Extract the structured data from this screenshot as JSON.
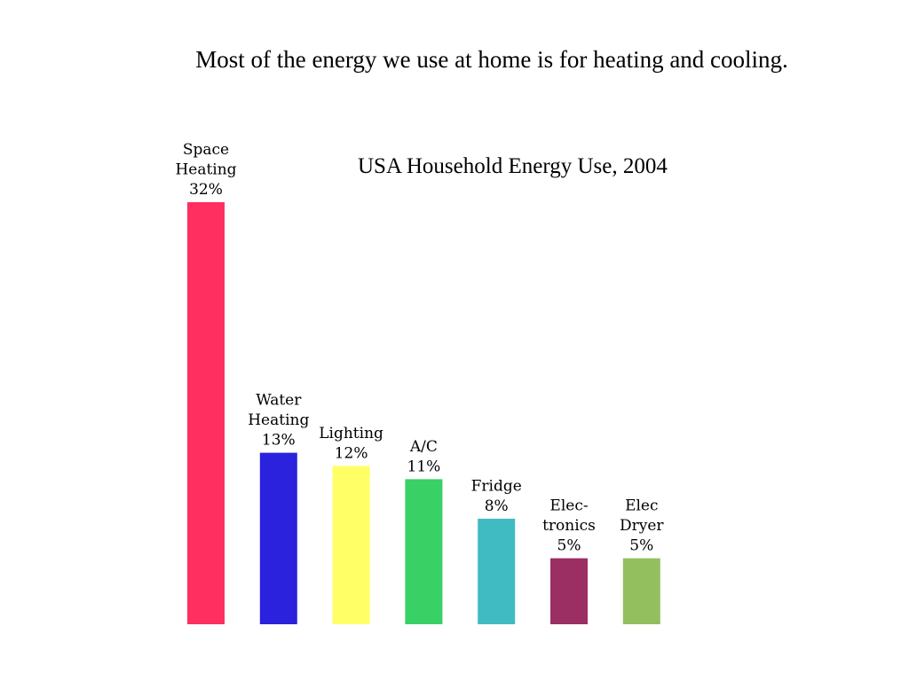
{
  "slide": {
    "heading": "Most of the energy we use at home is for heating and cooling."
  },
  "chart_data": {
    "type": "bar",
    "title": "USA Household Energy Use, 2004",
    "xlabel": "",
    "ylabel": "",
    "ylim": [
      0,
      32
    ],
    "grid": false,
    "unit": "%",
    "categories": [
      "Space Heating",
      "Water Heating",
      "Lighting",
      "A/C",
      "Fridge",
      "Elec-tronics",
      "Elec Dryer"
    ],
    "label_lines": [
      [
        "Space",
        "Heating",
        "32%"
      ],
      [
        "Water",
        "Heating",
        "13%"
      ],
      [
        "Lighting",
        "12%"
      ],
      [
        "A/C",
        "11%"
      ],
      [
        "Fridge",
        "8%"
      ],
      [
        "Elec-",
        "tronics",
        "5%"
      ],
      [
        "Elec",
        "Dryer",
        "5%"
      ]
    ],
    "values": [
      32,
      13,
      12,
      11,
      8,
      5,
      5
    ],
    "colors": [
      "#ff3060",
      "#2a22dd",
      "#ffff66",
      "#39d066",
      "#40bbc2",
      "#9b2e62",
      "#93bf5e"
    ]
  }
}
